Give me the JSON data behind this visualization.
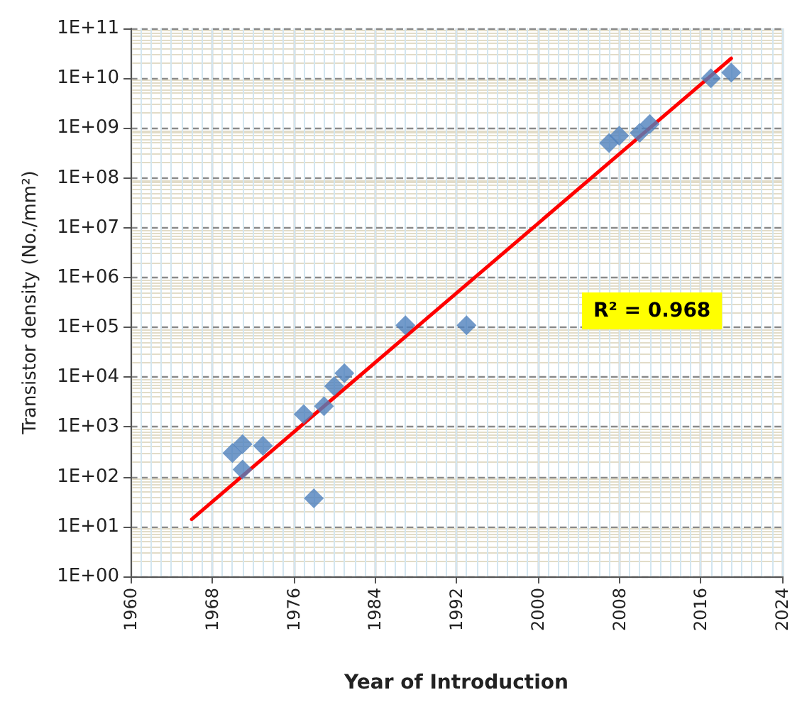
{
  "chart_data": {
    "type": "scatter",
    "xlabel": "Year of Introduction",
    "ylabel": "Transistor density (No./mm²)",
    "series": [
      {
        "color": "#4f81bd",
        "marker": "diamond",
        "x": [
          1970,
          1971,
          1971,
          1973,
          1977,
          1978,
          1979,
          1980,
          1981,
          1987,
          1993,
          2007,
          2008,
          2010,
          2011,
          2017,
          2019
        ],
        "values": [
          300,
          450,
          140,
          420,
          1800,
          37,
          2600,
          6600,
          12000,
          110000,
          110000,
          500000000,
          700000000,
          800000000,
          1200000000,
          10000000000,
          13000000000
        ]
      },
      {
        "type": "line",
        "color": "#ff0000",
        "marker": "none",
        "x": [
          1966,
          2019
        ],
        "values": [
          14,
          25000000000
        ]
      }
    ],
    "xlim": [
      1960,
      2024
    ],
    "xticks": [
      1960,
      1968,
      1976,
      1984,
      1992,
      2000,
      2008,
      2016,
      2024
    ],
    "ylim": [
      1,
      100000000000
    ],
    "log": "y",
    "yticks": [
      {
        "value": 1,
        "label": "1E+00"
      },
      {
        "value": 10,
        "label": "1E+01"
      },
      {
        "value": 100,
        "label": "1E+02"
      },
      {
        "value": 1000,
        "label": "1E+03"
      },
      {
        "value": 10000,
        "label": "1E+04"
      },
      {
        "value": 100000,
        "label": "1E+05"
      },
      {
        "value": 1000000,
        "label": "1E+06"
      },
      {
        "value": 10000000,
        "label": "1E+07"
      },
      {
        "value": 100000000,
        "label": "1E+08"
      },
      {
        "value": 1000000000,
        "label": "1E+09"
      },
      {
        "value": 10000000000,
        "label": "1E+10"
      },
      {
        "value": 100000000000,
        "label": "1E+11"
      }
    ],
    "grid": true,
    "annotations": [
      "R² = 0.968"
    ]
  }
}
